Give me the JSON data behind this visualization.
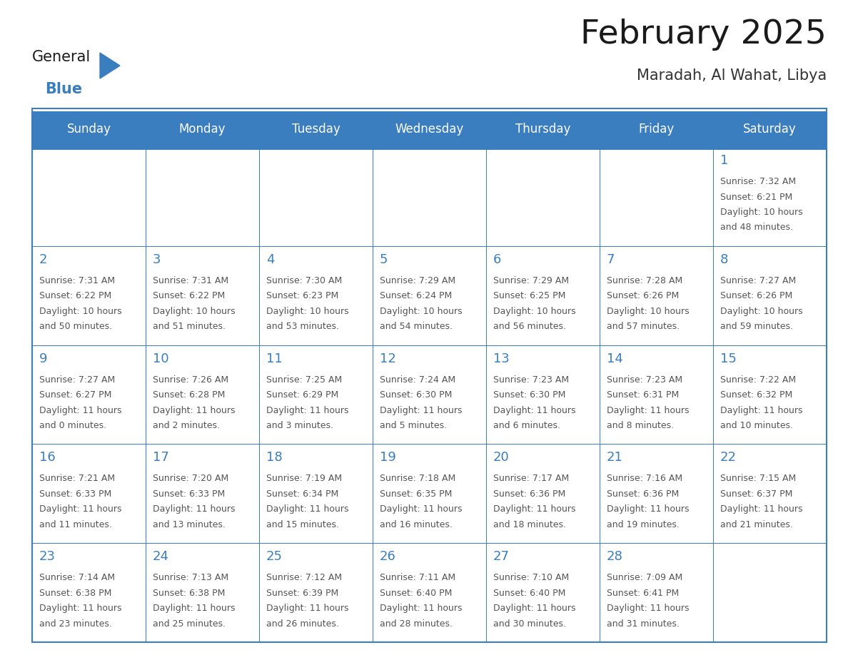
{
  "title": "February 2025",
  "subtitle": "Maradah, Al Wahat, Libya",
  "days_of_week": [
    "Sunday",
    "Monday",
    "Tuesday",
    "Wednesday",
    "Thursday",
    "Friday",
    "Saturday"
  ],
  "header_color": "#3a7ebf",
  "header_text_color": "#ffffff",
  "cell_bg_color": "#ffffff",
  "cell_border_color": "#3a7ebf",
  "day_number_color": "#3a7ebf",
  "info_text_color": "#555555",
  "title_color": "#1a1a1a",
  "subtitle_color": "#333333",
  "general_text_color": "#1a1a1a",
  "blue_color": "#3a7ebf",
  "calendar_data": [
    [
      null,
      null,
      null,
      null,
      null,
      null,
      {
        "day": 1,
        "sunrise": "7:32 AM",
        "sunset": "6:21 PM",
        "daylight": "10 hours\nand 48 minutes."
      }
    ],
    [
      {
        "day": 2,
        "sunrise": "7:31 AM",
        "sunset": "6:22 PM",
        "daylight": "10 hours\nand 50 minutes."
      },
      {
        "day": 3,
        "sunrise": "7:31 AM",
        "sunset": "6:22 PM",
        "daylight": "10 hours\nand 51 minutes."
      },
      {
        "day": 4,
        "sunrise": "7:30 AM",
        "sunset": "6:23 PM",
        "daylight": "10 hours\nand 53 minutes."
      },
      {
        "day": 5,
        "sunrise": "7:29 AM",
        "sunset": "6:24 PM",
        "daylight": "10 hours\nand 54 minutes."
      },
      {
        "day": 6,
        "sunrise": "7:29 AM",
        "sunset": "6:25 PM",
        "daylight": "10 hours\nand 56 minutes."
      },
      {
        "day": 7,
        "sunrise": "7:28 AM",
        "sunset": "6:26 PM",
        "daylight": "10 hours\nand 57 minutes."
      },
      {
        "day": 8,
        "sunrise": "7:27 AM",
        "sunset": "6:26 PM",
        "daylight": "10 hours\nand 59 minutes."
      }
    ],
    [
      {
        "day": 9,
        "sunrise": "7:27 AM",
        "sunset": "6:27 PM",
        "daylight": "11 hours\nand 0 minutes."
      },
      {
        "day": 10,
        "sunrise": "7:26 AM",
        "sunset": "6:28 PM",
        "daylight": "11 hours\nand 2 minutes."
      },
      {
        "day": 11,
        "sunrise": "7:25 AM",
        "sunset": "6:29 PM",
        "daylight": "11 hours\nand 3 minutes."
      },
      {
        "day": 12,
        "sunrise": "7:24 AM",
        "sunset": "6:30 PM",
        "daylight": "11 hours\nand 5 minutes."
      },
      {
        "day": 13,
        "sunrise": "7:23 AM",
        "sunset": "6:30 PM",
        "daylight": "11 hours\nand 6 minutes."
      },
      {
        "day": 14,
        "sunrise": "7:23 AM",
        "sunset": "6:31 PM",
        "daylight": "11 hours\nand 8 minutes."
      },
      {
        "day": 15,
        "sunrise": "7:22 AM",
        "sunset": "6:32 PM",
        "daylight": "11 hours\nand 10 minutes."
      }
    ],
    [
      {
        "day": 16,
        "sunrise": "7:21 AM",
        "sunset": "6:33 PM",
        "daylight": "11 hours\nand 11 minutes."
      },
      {
        "day": 17,
        "sunrise": "7:20 AM",
        "sunset": "6:33 PM",
        "daylight": "11 hours\nand 13 minutes."
      },
      {
        "day": 18,
        "sunrise": "7:19 AM",
        "sunset": "6:34 PM",
        "daylight": "11 hours\nand 15 minutes."
      },
      {
        "day": 19,
        "sunrise": "7:18 AM",
        "sunset": "6:35 PM",
        "daylight": "11 hours\nand 16 minutes."
      },
      {
        "day": 20,
        "sunrise": "7:17 AM",
        "sunset": "6:36 PM",
        "daylight": "11 hours\nand 18 minutes."
      },
      {
        "day": 21,
        "sunrise": "7:16 AM",
        "sunset": "6:36 PM",
        "daylight": "11 hours\nand 19 minutes."
      },
      {
        "day": 22,
        "sunrise": "7:15 AM",
        "sunset": "6:37 PM",
        "daylight": "11 hours\nand 21 minutes."
      }
    ],
    [
      {
        "day": 23,
        "sunrise": "7:14 AM",
        "sunset": "6:38 PM",
        "daylight": "11 hours\nand 23 minutes."
      },
      {
        "day": 24,
        "sunrise": "7:13 AM",
        "sunset": "6:38 PM",
        "daylight": "11 hours\nand 25 minutes."
      },
      {
        "day": 25,
        "sunrise": "7:12 AM",
        "sunset": "6:39 PM",
        "daylight": "11 hours\nand 26 minutes."
      },
      {
        "day": 26,
        "sunrise": "7:11 AM",
        "sunset": "6:40 PM",
        "daylight": "11 hours\nand 28 minutes."
      },
      {
        "day": 27,
        "sunrise": "7:10 AM",
        "sunset": "6:40 PM",
        "daylight": "11 hours\nand 30 minutes."
      },
      {
        "day": 28,
        "sunrise": "7:09 AM",
        "sunset": "6:41 PM",
        "daylight": "11 hours\nand 31 minutes."
      },
      null
    ]
  ],
  "num_rows": 5,
  "num_cols": 7,
  "fig_width": 11.88,
  "fig_height": 9.18
}
